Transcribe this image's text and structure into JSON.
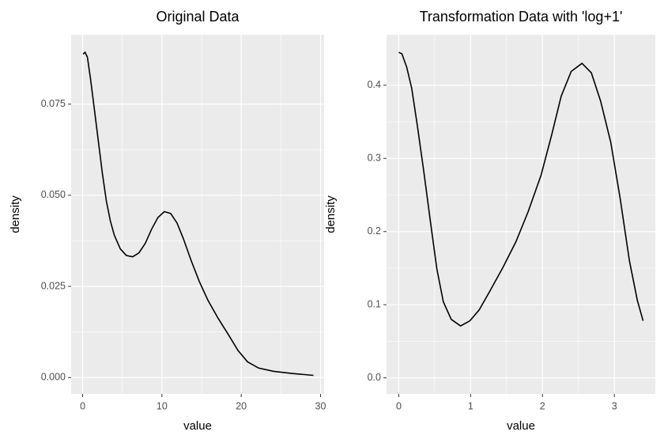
{
  "chart_data": [
    {
      "type": "line",
      "title": "Original Data",
      "x_label": "value",
      "y_label": "density",
      "color": "#000000",
      "grid": true,
      "x": [
        0.05,
        0.3,
        0.6,
        1.0,
        1.5,
        2.0,
        2.5,
        3.0,
        3.5,
        4.0,
        4.75,
        5.5,
        6.3,
        7.1,
        7.9,
        8.7,
        9.5,
        10.3,
        11.1,
        11.9,
        12.7,
        13.7,
        14.7,
        15.8,
        17.1,
        18.4,
        19.6,
        20.8,
        22.2,
        24.1,
        26.5,
        29.1
      ],
      "values": [
        0.0887,
        0.0892,
        0.0879,
        0.0818,
        0.0732,
        0.0645,
        0.0558,
        0.0483,
        0.0429,
        0.039,
        0.0353,
        0.0335,
        0.0331,
        0.0342,
        0.0368,
        0.0407,
        0.0439,
        0.0455,
        0.045,
        0.0424,
        0.0381,
        0.032,
        0.0264,
        0.0212,
        0.0162,
        0.0117,
        0.0074,
        0.0043,
        0.0026,
        0.0017,
        0.0011,
        0.0006
      ],
      "xlim": [
        -1.45,
        30.45
      ],
      "ylim": [
        -0.0045,
        0.094
      ],
      "xticks": [
        0,
        10,
        20,
        30
      ],
      "yticks": [
        {
          "value": 0,
          "label": "0.000"
        },
        {
          "value": 0.025,
          "label": "0.025"
        },
        {
          "value": 0.05,
          "label": "0.050"
        },
        {
          "value": 0.075,
          "label": "0.075"
        }
      ]
    },
    {
      "type": "line",
      "title": "Transformation Data with 'log+1'",
      "x_label": "value",
      "y_label": "density",
      "color": "#000000",
      "grid": true,
      "x": [
        0,
        0.044,
        0.11,
        0.18,
        0.26,
        0.35,
        0.44,
        0.53,
        0.62,
        0.73,
        0.86,
        0.99,
        1.12,
        1.27,
        1.45,
        1.63,
        1.8,
        1.98,
        2.13,
        2.26,
        2.4,
        2.55,
        2.68,
        2.81,
        2.95,
        3.08,
        3.21,
        3.32,
        3.4
      ],
      "values": [
        0.445,
        0.443,
        0.425,
        0.396,
        0.344,
        0.281,
        0.214,
        0.149,
        0.104,
        0.08,
        0.071,
        0.078,
        0.093,
        0.119,
        0.151,
        0.186,
        0.227,
        0.277,
        0.333,
        0.385,
        0.419,
        0.43,
        0.417,
        0.378,
        0.322,
        0.246,
        0.16,
        0.106,
        0.078
      ],
      "xlim": [
        -0.17,
        3.57
      ],
      "ylim": [
        -0.022,
        0.469
      ],
      "xticks": [
        0,
        1,
        2,
        3
      ],
      "yticks": [
        {
          "value": 0,
          "label": "0.0"
        },
        0.1,
        0.2,
        0.3,
        0.4
      ]
    }
  ]
}
